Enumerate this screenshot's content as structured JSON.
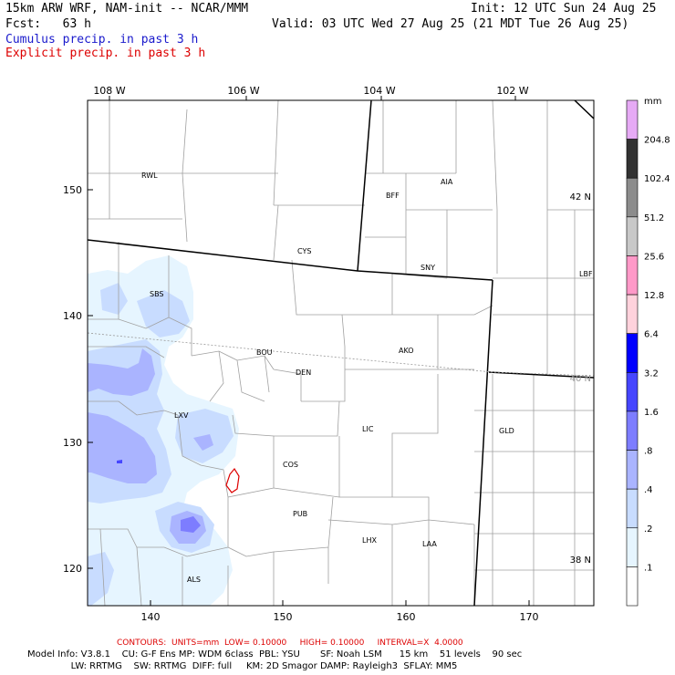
{
  "header": {
    "title": "15km ARW WRF, NAM-init -- NCAR/MMM",
    "init": "Init: 12 UTC Sun 24 Aug 25",
    "fcst": "Fcst:   63 h",
    "valid": "Valid: 03 UTC Wed 27 Aug 25 (21 MDT Tue 26 Aug 25)",
    "cumulus": "Cumulus precip. in past 3 h",
    "explicit": "Explicit precip. in past 3 h"
  },
  "colors": {
    "cumulus_text": "#1a1acc",
    "explicit_text": "#dd0000",
    "explicit_contour": "#dd0000"
  },
  "map": {
    "lon_labels": [
      "108 W",
      "106 W",
      "104 W",
      "102 W"
    ],
    "lat_labels": [
      "42 N",
      "40 N",
      "38 N"
    ],
    "x_ticks": [
      "140",
      "150",
      "160",
      "170"
    ],
    "y_ticks": [
      "120",
      "130",
      "140",
      "150"
    ],
    "cities": [
      "RWL",
      "BFF",
      "AIA",
      "CYS",
      "SNY",
      "LBF",
      "SBS",
      "BOU",
      "AKO",
      "DEN",
      "LXV",
      "LIC",
      "GLD",
      "COS",
      "PUB",
      "LHX",
      "LAA",
      "ALS"
    ]
  },
  "colorbar": {
    "unit": "mm",
    "labels": [
      "204.8",
      "102.4",
      "51.2",
      "25.6",
      "12.8",
      "6.4",
      "3.2",
      "1.6",
      ".8",
      ".4",
      ".2",
      ".1"
    ],
    "colors": [
      "#e6aaf5",
      "#323232",
      "#8c8c8c",
      "#c8c8c8",
      "#ff99c8",
      "#ffd2dc",
      "#0000ff",
      "#4646ff",
      "#7d7dff",
      "#aab4ff",
      "#c8dcff",
      "#e6f5ff",
      "#ffffff"
    ]
  },
  "footer": {
    "contours": "CONTOURS:  UNITS=mm  LOW= 0.10000     HIGH= 0.10000     INTERVAL=X  4.0000",
    "model_line1": "Model Info: V3.8.1    CU: G-F Ens MP: WDM 6class  PBL: YSU       SF: Noah LSM      15 km    51 levels    90 sec",
    "model_line2": "               LW: RRTMG    SW: RRTMG  DIFF: full     KM: 2D Smagor DAMP: Rayleigh3  SFLAY: MM5"
  }
}
